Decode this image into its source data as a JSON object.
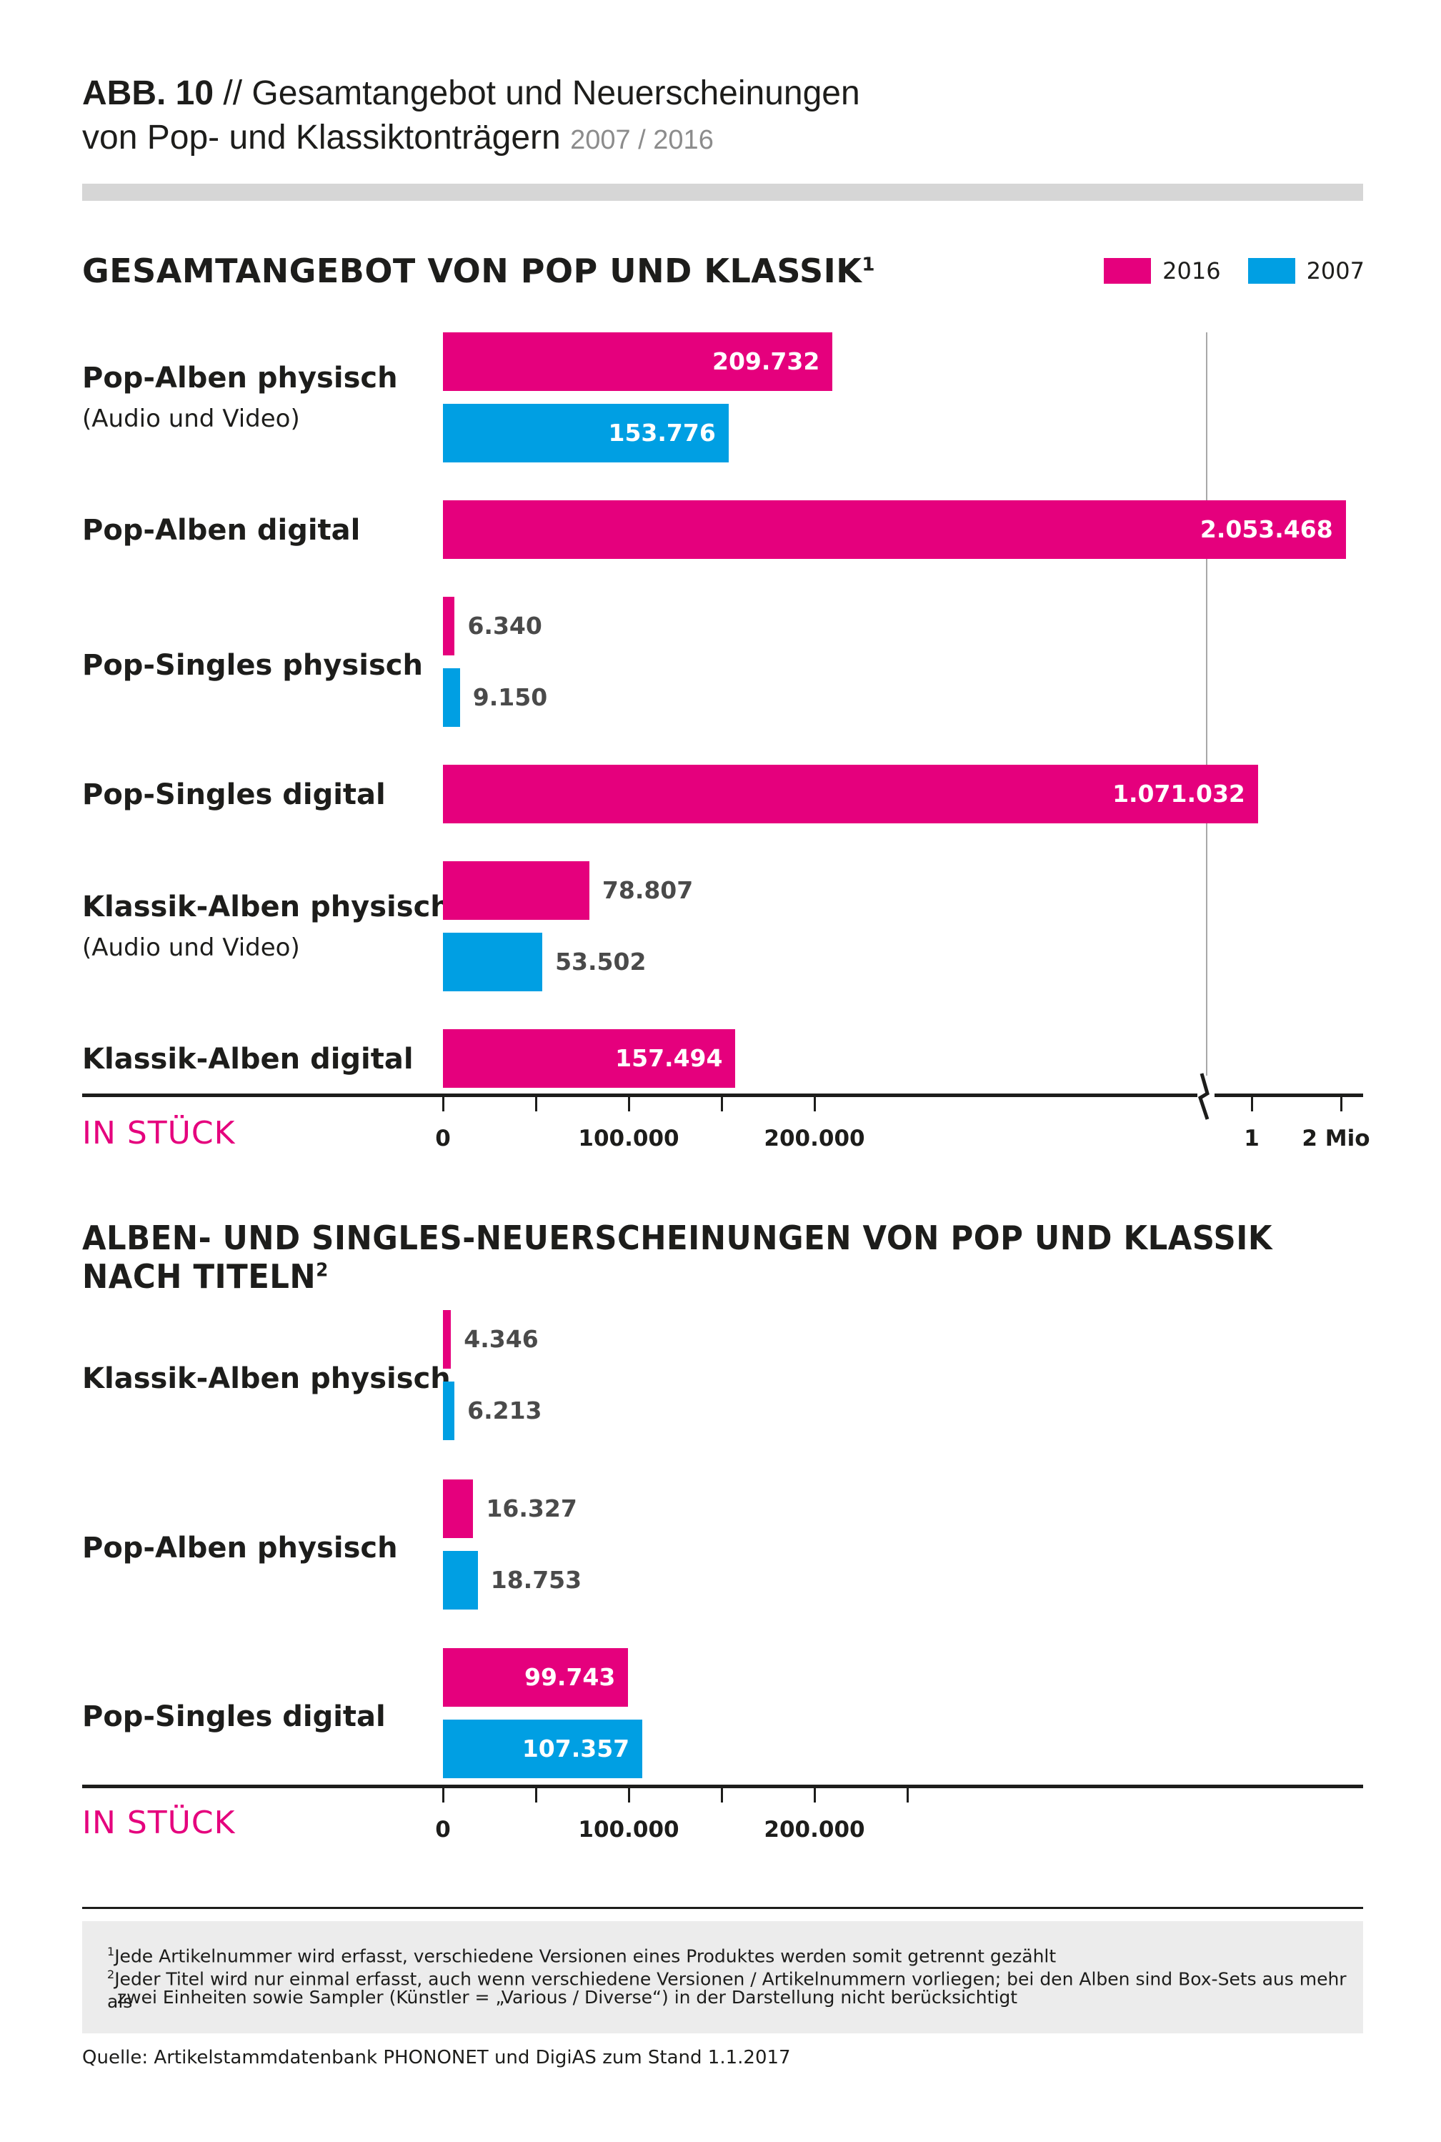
{
  "header": {
    "abb": "ABB. 10",
    "title_line1": "// Gesamtangebot und Neuerscheinungen",
    "title_line2": "von Pop- und Klassiktonträgern",
    "years": "2007 / 2016"
  },
  "legend": [
    {
      "label": "2016",
      "color": "#e5007d"
    },
    {
      "label": "2007",
      "color": "#009fe3"
    }
  ],
  "colors": {
    "series_2016": "#e5007d",
    "series_2007": "#009fe3",
    "text": "#1d1d1b"
  },
  "chart_data": [
    {
      "type": "bar",
      "orientation": "horizontal",
      "title": "GESAMTANGEBOT VON POP UND KLASSIK",
      "title_footnote": "1",
      "unit_label": "IN STÜCK",
      "axis": {
        "broken": true,
        "segment1": {
          "range": [
            0,
            250000
          ],
          "ticks": [
            "0",
            "100.000",
            "200.000"
          ]
        },
        "segment2": {
          "range": [
            0,
            2000000
          ],
          "ticks": [
            "1",
            "2 Mio"
          ]
        }
      },
      "categories": [
        {
          "label": "Pop-Alben physisch",
          "sublabel": "(Audio und Video)"
        },
        {
          "label": "Pop-Alben digital",
          "sublabel": ""
        },
        {
          "label": "Pop-Singles physisch",
          "sublabel": ""
        },
        {
          "label": "Pop-Singles digital",
          "sublabel": ""
        },
        {
          "label": "Klassik-Alben physisch",
          "sublabel": "(Audio und Video)"
        },
        {
          "label": "Klassik-Alben digital",
          "sublabel": ""
        }
      ],
      "series": [
        {
          "name": "2016",
          "values": [
            209732,
            2053468,
            6340,
            1071032,
            78807,
            157494
          ],
          "labels": [
            "209.732",
            "2.053.468",
            "6.340",
            "1.071.032",
            "78.807",
            "157.494"
          ]
        },
        {
          "name": "2007",
          "values": [
            153776,
            null,
            9150,
            null,
            53502,
            null
          ],
          "labels": [
            "153.776",
            "",
            "9.150",
            "",
            "53.502",
            ""
          ]
        }
      ]
    },
    {
      "type": "bar",
      "orientation": "horizontal",
      "title": "ALBEN- UND SINGLES-NEUERSCHEINUNGEN VON POP UND KLASSIK NACH TITELN",
      "title_footnote": "2",
      "unit_label": "IN STÜCK",
      "axis": {
        "range": [
          0,
          250000
        ],
        "ticks": [
          "0",
          "100.000",
          "200.000"
        ]
      },
      "categories": [
        {
          "label": "Klassik-Alben physisch"
        },
        {
          "label": "Pop-Alben physisch"
        },
        {
          "label": "Pop-Singles digital"
        }
      ],
      "series": [
        {
          "name": "2016",
          "values": [
            4346,
            16327,
            99743
          ],
          "labels": [
            "4.346",
            "16.327",
            "99.743"
          ]
        },
        {
          "name": "2007",
          "values": [
            6213,
            18753,
            107357
          ],
          "labels": [
            "6.213",
            "18.753",
            "107.357"
          ]
        }
      ]
    }
  ],
  "footnotes": {
    "fn1_mark": "1",
    "fn1": "Jede Artikelnummer wird erfasst, verschiedene Versionen eines Produktes werden somit getrennt gezählt",
    "fn2_mark": "2",
    "fn2_line1": "Jeder Titel wird nur einmal erfasst, auch wenn verschiedene Versionen / Artikelnummern vorliegen; bei den Alben sind Box-Sets aus mehr als",
    "fn2_line2": "zwei Einheiten sowie Sampler (Künstler = „Various / Diverse“) in der Darstellung nicht berücksichtigt"
  },
  "source": "Quelle: Artikelstammdatenbank PHONONET und DigiAS zum Stand 1.1.2017"
}
